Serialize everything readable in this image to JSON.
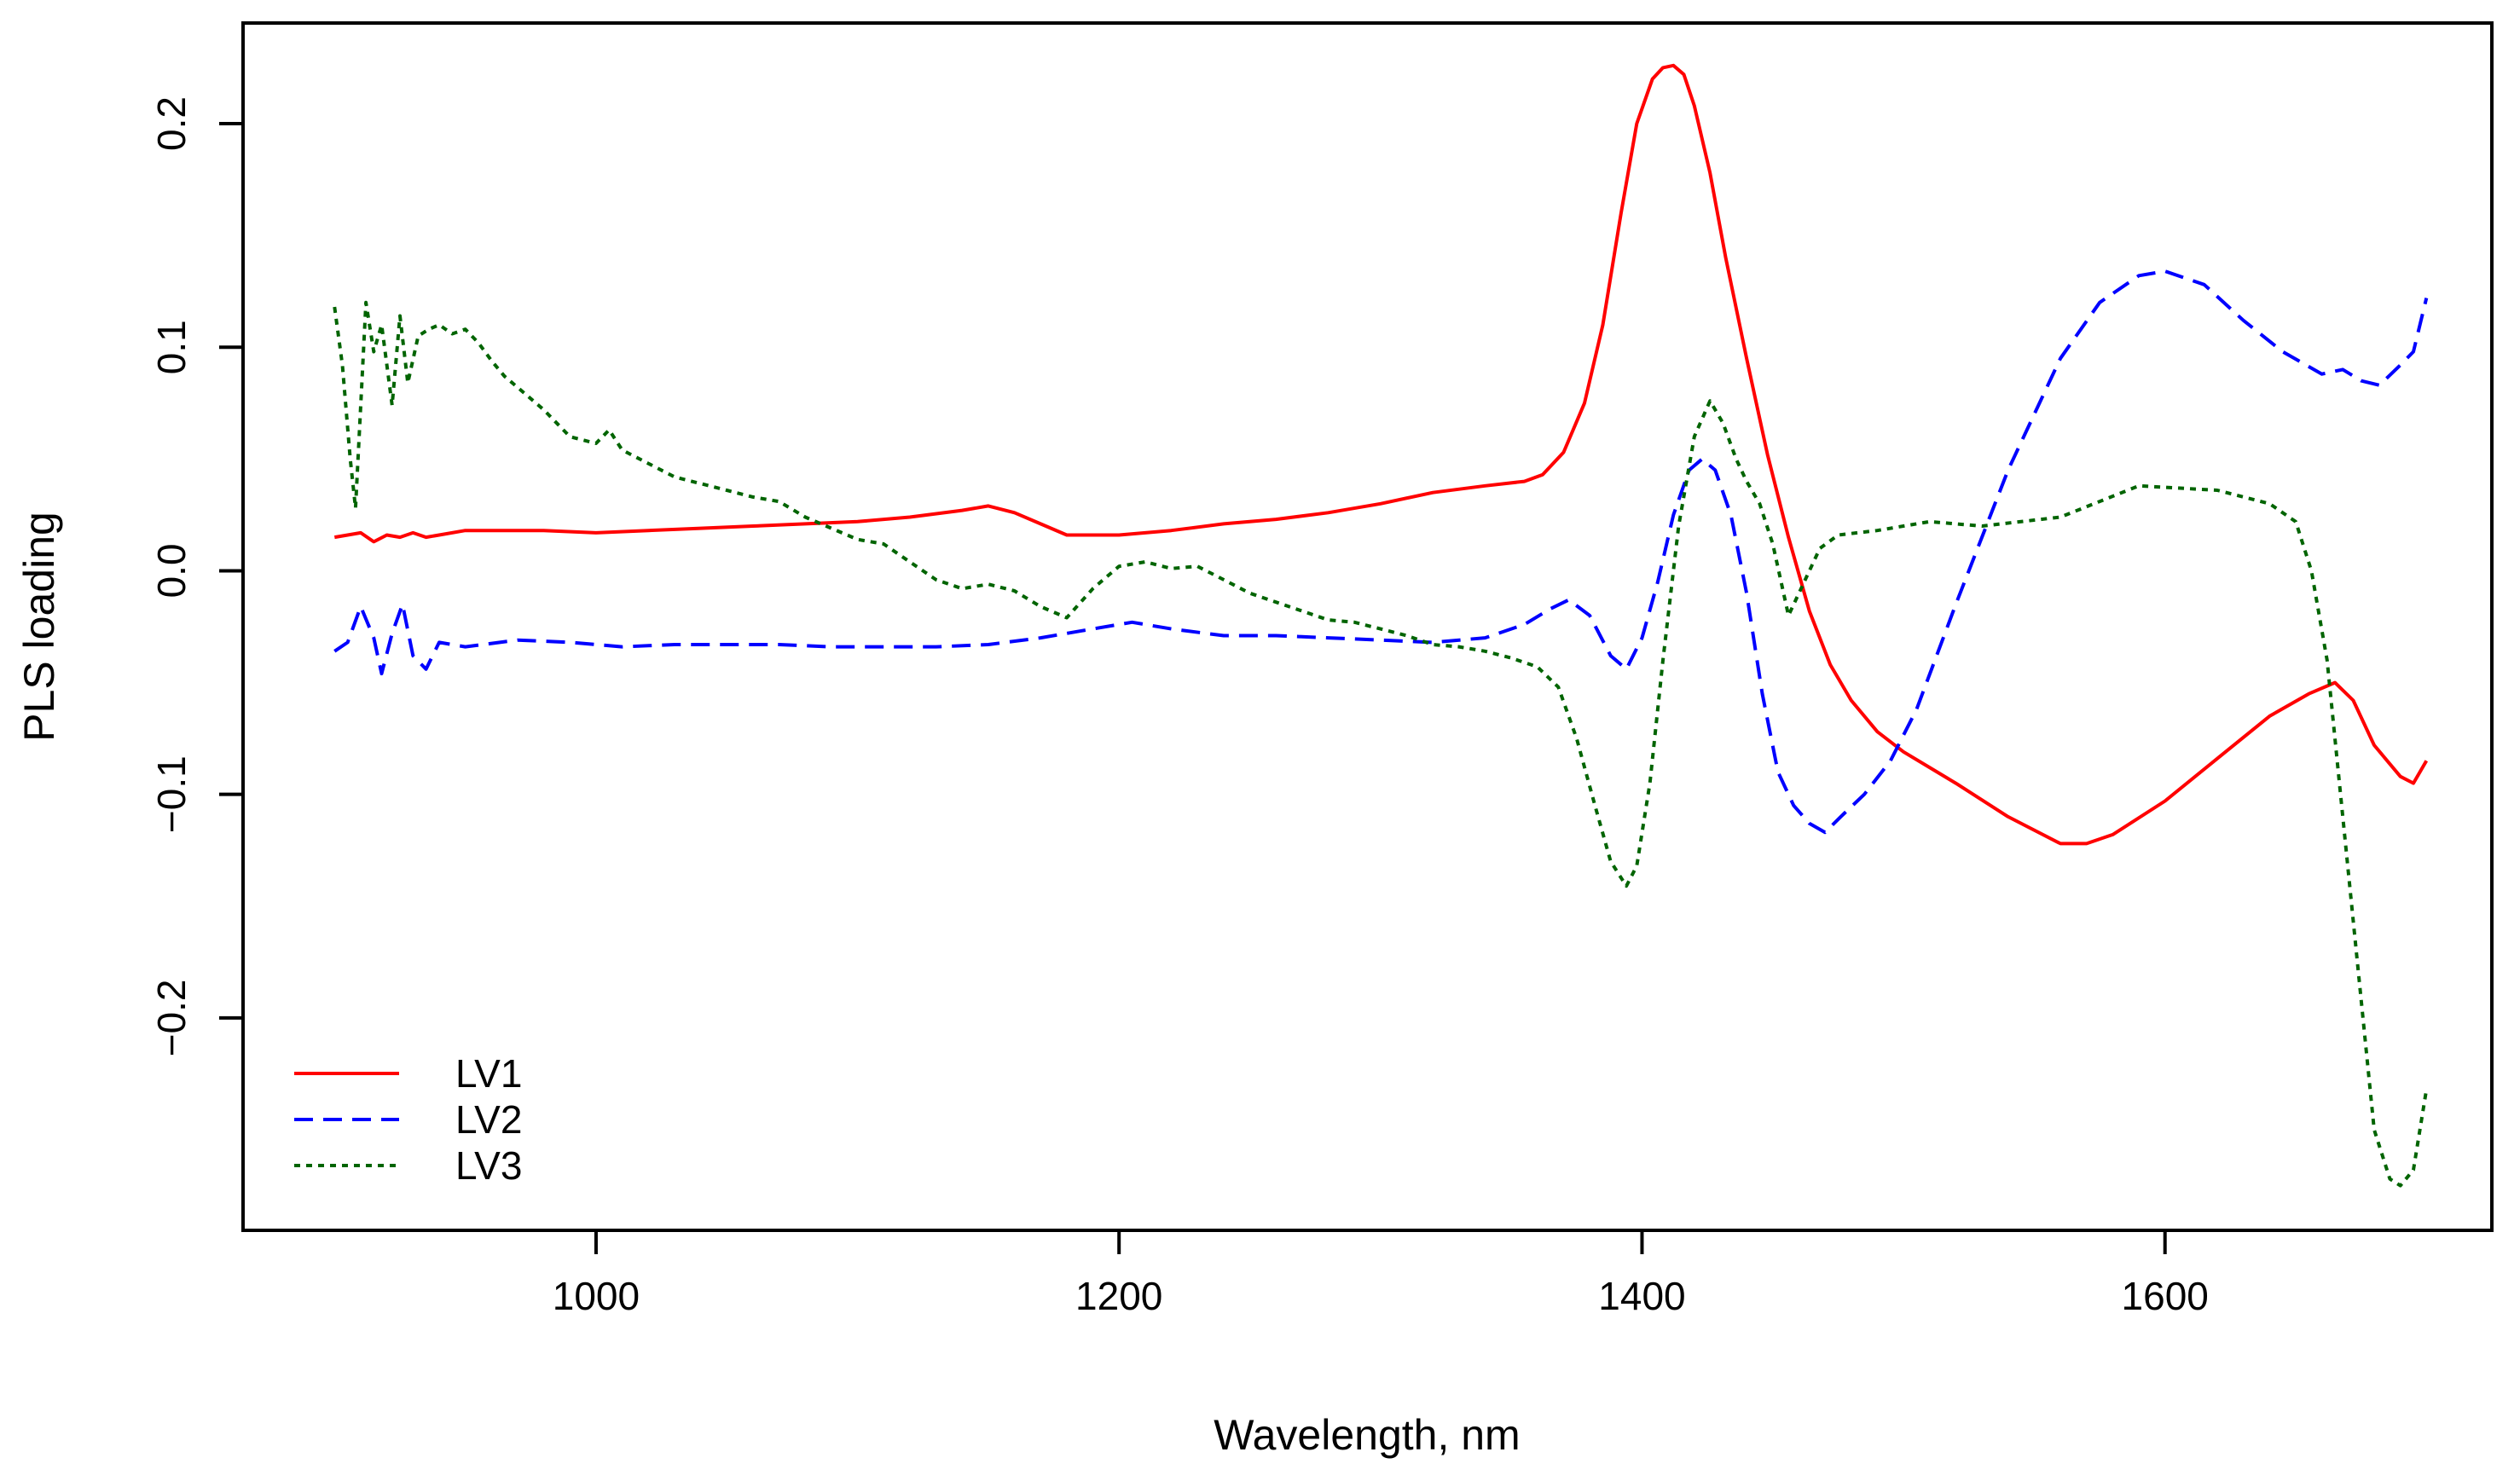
{
  "chart_data": {
    "type": "line",
    "title": "",
    "xlabel": "Wavelength, nm",
    "ylabel": "PLS loading",
    "xlim": [
      865,
      1725
    ],
    "ylim": [
      -0.295,
      0.245
    ],
    "xticks": [
      1000,
      1200,
      1400,
      1600
    ],
    "xtick_labels": [
      "1000",
      "1200",
      "1400",
      "1600"
    ],
    "yticks": [
      -0.2,
      -0.1,
      0.0,
      0.1,
      0.2
    ],
    "ytick_labels": [
      "−0.2",
      "−0.1",
      "0.0",
      "0.1",
      "0.2"
    ],
    "grid": false,
    "legend_position": "bottom-left",
    "series": [
      {
        "name": "LV1",
        "color": "#ff0000",
        "dash": "solid",
        "x": [
          900,
          905,
          910,
          915,
          920,
          925,
          930,
          935,
          940,
          950,
          960,
          980,
          1000,
          1020,
          1040,
          1060,
          1080,
          1100,
          1120,
          1140,
          1150,
          1160,
          1170,
          1180,
          1190,
          1200,
          1220,
          1240,
          1260,
          1280,
          1300,
          1320,
          1340,
          1355,
          1362,
          1370,
          1378,
          1385,
          1392,
          1398,
          1404,
          1408,
          1412,
          1416,
          1420,
          1426,
          1432,
          1440,
          1448,
          1456,
          1464,
          1472,
          1480,
          1490,
          1500,
          1520,
          1540,
          1560,
          1570,
          1580,
          1600,
          1620,
          1640,
          1655,
          1665,
          1672,
          1680,
          1690,
          1695,
          1700
        ],
        "y": [
          0.015,
          0.016,
          0.017,
          0.013,
          0.016,
          0.015,
          0.017,
          0.015,
          0.016,
          0.018,
          0.018,
          0.018,
          0.017,
          0.018,
          0.019,
          0.02,
          0.021,
          0.022,
          0.024,
          0.027,
          0.029,
          0.026,
          0.021,
          0.016,
          0.016,
          0.016,
          0.018,
          0.021,
          0.023,
          0.026,
          0.03,
          0.035,
          0.038,
          0.04,
          0.043,
          0.053,
          0.075,
          0.11,
          0.16,
          0.2,
          0.22,
          0.225,
          0.226,
          0.222,
          0.208,
          0.178,
          0.14,
          0.095,
          0.052,
          0.015,
          -0.018,
          -0.042,
          -0.058,
          -0.072,
          -0.081,
          -0.095,
          -0.11,
          -0.122,
          -0.122,
          -0.118,
          -0.103,
          -0.084,
          -0.065,
          -0.055,
          -0.05,
          -0.058,
          -0.078,
          -0.092,
          -0.095,
          -0.085
        ]
      },
      {
        "name": "LV2",
        "color": "#0000ff",
        "dash": "dashed",
        "x": [
          900,
          905,
          910,
          915,
          918,
          922,
          926,
          930,
          935,
          940,
          950,
          970,
          990,
          1010,
          1030,
          1050,
          1070,
          1090,
          1110,
          1130,
          1150,
          1170,
          1190,
          1205,
          1220,
          1240,
          1260,
          1280,
          1300,
          1320,
          1340,
          1355,
          1365,
          1372,
          1380,
          1388,
          1394,
          1400,
          1406,
          1412,
          1418,
          1423,
          1428,
          1434,
          1440,
          1446,
          1452,
          1458,
          1464,
          1470,
          1476,
          1485,
          1495,
          1505,
          1520,
          1540,
          1560,
          1575,
          1590,
          1600,
          1615,
          1630,
          1645,
          1660,
          1668,
          1675,
          1682,
          1690,
          1695,
          1700
        ],
        "y": [
          -0.036,
          -0.032,
          -0.016,
          -0.03,
          -0.046,
          -0.028,
          -0.015,
          -0.038,
          -0.044,
          -0.032,
          -0.034,
          -0.031,
          -0.032,
          -0.034,
          -0.033,
          -0.033,
          -0.033,
          -0.034,
          -0.034,
          -0.034,
          -0.033,
          -0.03,
          -0.026,
          -0.023,
          -0.026,
          -0.029,
          -0.029,
          -0.03,
          -0.031,
          -0.032,
          -0.03,
          -0.024,
          -0.017,
          -0.013,
          -0.02,
          -0.038,
          -0.044,
          -0.03,
          -0.005,
          0.025,
          0.045,
          0.05,
          0.045,
          0.025,
          -0.01,
          -0.055,
          -0.09,
          -0.105,
          -0.113,
          -0.117,
          -0.11,
          -0.1,
          -0.085,
          -0.062,
          -0.015,
          0.045,
          0.095,
          0.12,
          0.132,
          0.134,
          0.128,
          0.112,
          0.098,
          0.088,
          0.09,
          0.085,
          0.083,
          0.092,
          0.098,
          0.122
        ]
      },
      {
        "name": "LV3",
        "color": "#006400",
        "dash": "dotted",
        "x": [
          900,
          903,
          906,
          908,
          912,
          915,
          918,
          922,
          925,
          928,
          932,
          936,
          940,
          945,
          950,
          955,
          960,
          965,
          970,
          980,
          990,
          1000,
          1005,
          1010,
          1020,
          1030,
          1040,
          1050,
          1060,
          1070,
          1080,
          1090,
          1100,
          1110,
          1120,
          1130,
          1140,
          1150,
          1160,
          1170,
          1180,
          1190,
          1200,
          1210,
          1220,
          1230,
          1240,
          1250,
          1260,
          1270,
          1280,
          1290,
          1300,
          1310,
          1320,
          1330,
          1340,
          1350,
          1360,
          1368,
          1375,
          1382,
          1388,
          1394,
          1398,
          1403,
          1408,
          1414,
          1420,
          1426,
          1431,
          1436,
          1440,
          1445,
          1450,
          1456,
          1462,
          1468,
          1475,
          1490,
          1510,
          1530,
          1560,
          1590,
          1620,
          1640,
          1650,
          1656,
          1662,
          1668,
          1674,
          1680,
          1686,
          1690,
          1695,
          1700
        ],
        "y": [
          0.118,
          0.092,
          0.05,
          0.028,
          0.12,
          0.098,
          0.11,
          0.074,
          0.114,
          0.084,
          0.105,
          0.108,
          0.11,
          0.106,
          0.108,
          0.102,
          0.094,
          0.087,
          0.082,
          0.072,
          0.06,
          0.057,
          0.063,
          0.054,
          0.048,
          0.042,
          0.039,
          0.036,
          0.033,
          0.031,
          0.024,
          0.019,
          0.014,
          0.012,
          0.004,
          -0.004,
          -0.008,
          -0.006,
          -0.009,
          -0.016,
          -0.021,
          -0.008,
          0.002,
          0.004,
          0.001,
          0.002,
          -0.004,
          -0.01,
          -0.014,
          -0.018,
          -0.022,
          -0.023,
          -0.026,
          -0.029,
          -0.033,
          -0.034,
          -0.036,
          -0.039,
          -0.043,
          -0.052,
          -0.075,
          -0.105,
          -0.13,
          -0.141,
          -0.132,
          -0.095,
          -0.04,
          0.02,
          0.06,
          0.076,
          0.066,
          0.05,
          0.04,
          0.03,
          0.012,
          -0.02,
          -0.005,
          0.01,
          0.016,
          0.018,
          0.022,
          0.02,
          0.024,
          0.038,
          0.036,
          0.03,
          0.022,
          0.0,
          -0.04,
          -0.11,
          -0.18,
          -0.25,
          -0.272,
          -0.275,
          -0.268,
          -0.232
        ]
      }
    ]
  }
}
